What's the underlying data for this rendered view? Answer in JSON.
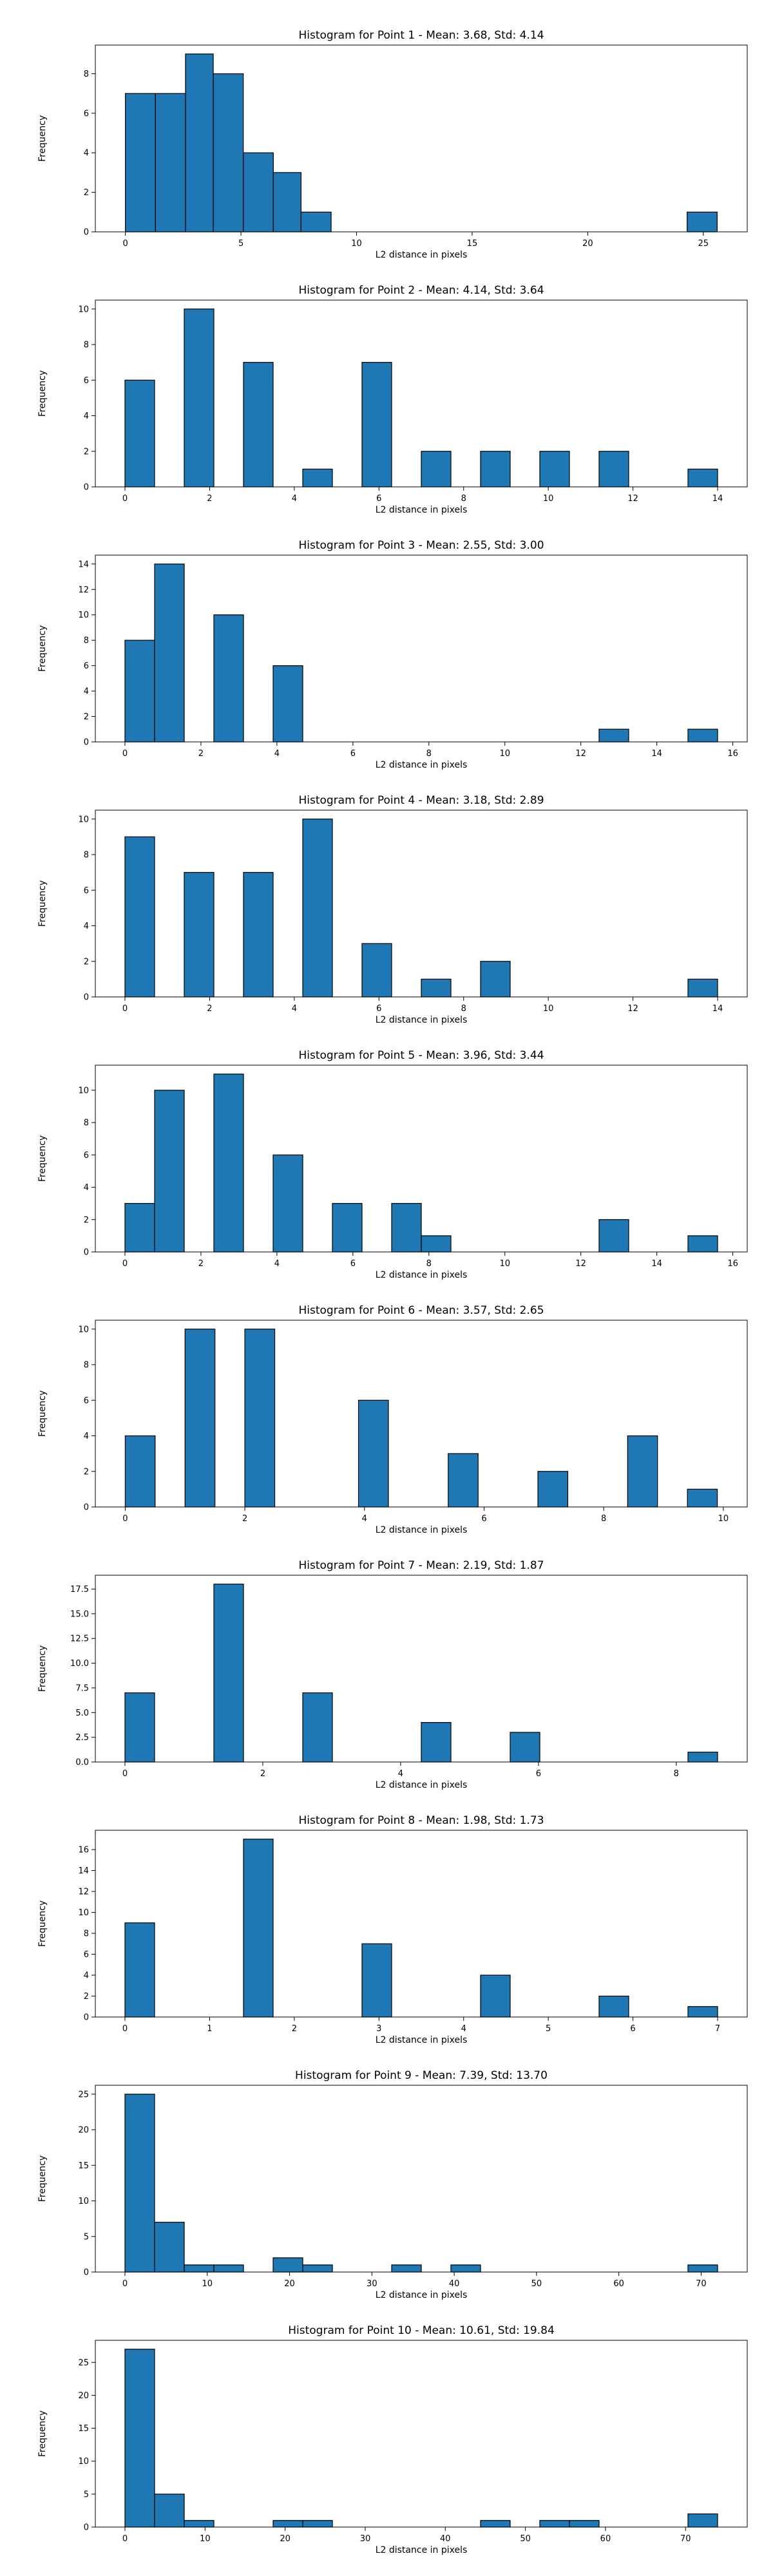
{
  "chart_data": [
    {
      "type": "bar",
      "title": "Histogram for Point 1 - Mean: 3.68, Std: 4.14",
      "xlabel": "L2 distance in pixels",
      "ylabel": "Frequency",
      "bins": [
        [
          0,
          1.3
        ],
        [
          1.3,
          2.6
        ],
        [
          2.6,
          3.8
        ],
        [
          3.8,
          5.1
        ],
        [
          5.1,
          6.4
        ],
        [
          6.4,
          7.6
        ],
        [
          7.6,
          8.9
        ],
        [
          24.3,
          25.6
        ]
      ],
      "values": [
        7,
        7,
        9,
        8,
        4,
        3,
        1,
        1
      ],
      "xlim": [
        -1.3,
        26.9
      ],
      "ylim": [
        0,
        9.45
      ],
      "xticks": [
        0,
        5,
        10,
        15,
        20,
        25
      ],
      "yticks": [
        0,
        2,
        4,
        6,
        8
      ]
    },
    {
      "type": "bar",
      "title": "Histogram for Point 2 - Mean: 4.14, Std: 3.64",
      "xlabel": "L2 distance in pixels",
      "ylabel": "Frequency",
      "bins": [
        [
          0,
          0.7
        ],
        [
          1.4,
          2.1
        ],
        [
          2.8,
          3.5
        ],
        [
          4.2,
          4.9
        ],
        [
          5.6,
          6.3
        ],
        [
          7.0,
          7.7
        ],
        [
          8.4,
          9.1
        ],
        [
          9.8,
          10.5
        ],
        [
          11.2,
          11.9
        ],
        [
          13.3,
          14.0
        ]
      ],
      "values": [
        6,
        10,
        7,
        1,
        7,
        2,
        2,
        2,
        2,
        1
      ],
      "xlim": [
        -0.7,
        14.7
      ],
      "ylim": [
        0,
        10.5
      ],
      "xticks": [
        0,
        2,
        4,
        6,
        8,
        10,
        12,
        14
      ],
      "yticks": [
        0,
        2,
        4,
        6,
        8,
        10
      ]
    },
    {
      "type": "bar",
      "title": "Histogram for Point 3 - Mean: 2.55, Std: 3.00",
      "xlabel": "L2 distance in pixels",
      "ylabel": "Frequency",
      "bins": [
        [
          0,
          0.78
        ],
        [
          0.78,
          1.56
        ],
        [
          2.34,
          3.12
        ],
        [
          3.9,
          4.68
        ],
        [
          12.48,
          13.26
        ],
        [
          14.82,
          15.6
        ]
      ],
      "values": [
        8,
        14,
        10,
        6,
        1,
        1
      ],
      "xlim": [
        -0.78,
        16.38
      ],
      "ylim": [
        0,
        14.7
      ],
      "xticks": [
        0,
        2,
        4,
        6,
        8,
        10,
        12,
        14,
        16
      ],
      "yticks": [
        0,
        2,
        4,
        6,
        8,
        10,
        12,
        14
      ]
    },
    {
      "type": "bar",
      "title": "Histogram for Point 4 - Mean: 3.18, Std: 2.89",
      "xlabel": "L2 distance in pixels",
      "ylabel": "Frequency",
      "bins": [
        [
          0,
          0.7
        ],
        [
          1.4,
          2.1
        ],
        [
          2.8,
          3.5
        ],
        [
          4.2,
          4.9
        ],
        [
          5.6,
          6.3
        ],
        [
          7.0,
          7.7
        ],
        [
          8.4,
          9.1
        ],
        [
          13.3,
          14.0
        ]
      ],
      "values": [
        9,
        7,
        7,
        10,
        3,
        1,
        2,
        1
      ],
      "xlim": [
        -0.7,
        14.7
      ],
      "ylim": [
        0,
        10.5
      ],
      "xticks": [
        0,
        2,
        4,
        6,
        8,
        10,
        12,
        14
      ],
      "yticks": [
        0,
        2,
        4,
        6,
        8,
        10
      ]
    },
    {
      "type": "bar",
      "title": "Histogram for Point 5 - Mean: 3.96, Std: 3.44",
      "xlabel": "L2 distance in pixels",
      "ylabel": "Frequency",
      "bins": [
        [
          0,
          0.78
        ],
        [
          0.78,
          1.56
        ],
        [
          2.34,
          3.12
        ],
        [
          3.9,
          4.68
        ],
        [
          5.46,
          6.24
        ],
        [
          7.02,
          7.8
        ],
        [
          7.8,
          8.58
        ],
        [
          12.48,
          13.26
        ],
        [
          14.82,
          15.6
        ]
      ],
      "values": [
        3,
        10,
        11,
        6,
        3,
        3,
        1,
        2,
        1
      ],
      "xlim": [
        -0.78,
        16.38
      ],
      "ylim": [
        0,
        11.55
      ],
      "xticks": [
        0,
        2,
        4,
        6,
        8,
        10,
        12,
        14,
        16
      ],
      "yticks": [
        0,
        2,
        4,
        6,
        8,
        10
      ]
    },
    {
      "type": "bar",
      "title": "Histogram for Point 6 - Mean: 3.57, Std: 2.65",
      "xlabel": "L2 distance in pixels",
      "ylabel": "Frequency",
      "bins": [
        [
          0,
          0.5
        ],
        [
          1.0,
          1.5
        ],
        [
          2.0,
          2.5
        ],
        [
          3.9,
          4.4
        ],
        [
          5.4,
          5.9
        ],
        [
          6.9,
          7.4
        ],
        [
          8.4,
          8.9
        ],
        [
          9.4,
          9.9
        ]
      ],
      "values": [
        4,
        10,
        10,
        6,
        3,
        2,
        4,
        1
      ],
      "xlim": [
        -0.5,
        10.4
      ],
      "ylim": [
        0,
        10.5
      ],
      "xticks": [
        0,
        2,
        4,
        6,
        8,
        10
      ],
      "yticks": [
        0,
        2,
        4,
        6,
        8,
        10
      ]
    },
    {
      "type": "bar",
      "title": "Histogram for Point 7 - Mean: 2.19, Std: 1.87",
      "xlabel": "L2 distance in pixels",
      "ylabel": "Frequency",
      "bins": [
        [
          0,
          0.43
        ],
        [
          1.29,
          1.72
        ],
        [
          2.58,
          3.01
        ],
        [
          4.3,
          4.73
        ],
        [
          5.59,
          6.02
        ],
        [
          8.17,
          8.6
        ]
      ],
      "values": [
        7,
        18,
        7,
        4,
        3,
        1
      ],
      "xlim": [
        -0.43,
        9.03
      ],
      "ylim": [
        0,
        18.9
      ],
      "xticks": [
        0,
        2,
        4,
        6,
        8
      ],
      "yticks": [
        0,
        2.5,
        5.0,
        7.5,
        10.0,
        12.5,
        15.0,
        17.5
      ],
      "ytick_labels": [
        "0.0",
        "2.5",
        "5.0",
        "7.5",
        "10.0",
        "12.5",
        "15.0",
        "17.5"
      ]
    },
    {
      "type": "bar",
      "title": "Histogram for Point 8 - Mean: 1.98, Std: 1.73",
      "xlabel": "L2 distance in pixels",
      "ylabel": "Frequency",
      "bins": [
        [
          0,
          0.35
        ],
        [
          1.4,
          1.75
        ],
        [
          2.8,
          3.15
        ],
        [
          4.2,
          4.55
        ],
        [
          5.6,
          5.95
        ],
        [
          6.65,
          7.0
        ]
      ],
      "values": [
        9,
        17,
        7,
        4,
        2,
        1
      ],
      "xlim": [
        -0.35,
        7.35
      ],
      "ylim": [
        0,
        17.85
      ],
      "xticks": [
        0,
        1,
        2,
        3,
        4,
        5,
        6,
        7
      ],
      "yticks": [
        0,
        2,
        4,
        6,
        8,
        10,
        12,
        14,
        16
      ]
    },
    {
      "type": "bar",
      "title": "Histogram for Point 9 - Mean: 7.39, Std: 13.70",
      "xlabel": "L2 distance in pixels",
      "ylabel": "Frequency",
      "bins": [
        [
          0,
          3.6
        ],
        [
          3.6,
          7.2
        ],
        [
          7.2,
          10.8
        ],
        [
          10.8,
          14.4
        ],
        [
          18.0,
          21.6
        ],
        [
          21.6,
          25.2
        ],
        [
          32.4,
          36.0
        ],
        [
          39.6,
          43.2
        ],
        [
          68.4,
          72.0
        ]
      ],
      "values": [
        25,
        7,
        1,
        1,
        2,
        1,
        1,
        1,
        1
      ],
      "xlim": [
        -3.6,
        75.6
      ],
      "ylim": [
        0,
        26.25
      ],
      "xticks": [
        0,
        10,
        20,
        30,
        40,
        50,
        60,
        70
      ],
      "yticks": [
        0,
        5,
        10,
        15,
        20,
        25
      ]
    },
    {
      "type": "bar",
      "title": "Histogram for Point 10 - Mean: 10.61, Std: 19.84",
      "xlabel": "L2 distance in pixels",
      "ylabel": "Frequency",
      "bins": [
        [
          0,
          3.7
        ],
        [
          3.7,
          7.4
        ],
        [
          7.4,
          11.1
        ],
        [
          18.5,
          22.2
        ],
        [
          22.2,
          25.9
        ],
        [
          44.4,
          48.1
        ],
        [
          51.8,
          55.5
        ],
        [
          55.5,
          59.2
        ],
        [
          70.3,
          74.0
        ]
      ],
      "values": [
        27,
        5,
        1,
        1,
        1,
        1,
        1,
        1,
        2
      ],
      "xlim": [
        -3.7,
        77.7
      ],
      "ylim": [
        0,
        28.35
      ],
      "xticks": [
        0,
        10,
        20,
        30,
        40,
        50,
        60,
        70
      ],
      "yticks": [
        0,
        5,
        10,
        15,
        20,
        25
      ]
    }
  ]
}
